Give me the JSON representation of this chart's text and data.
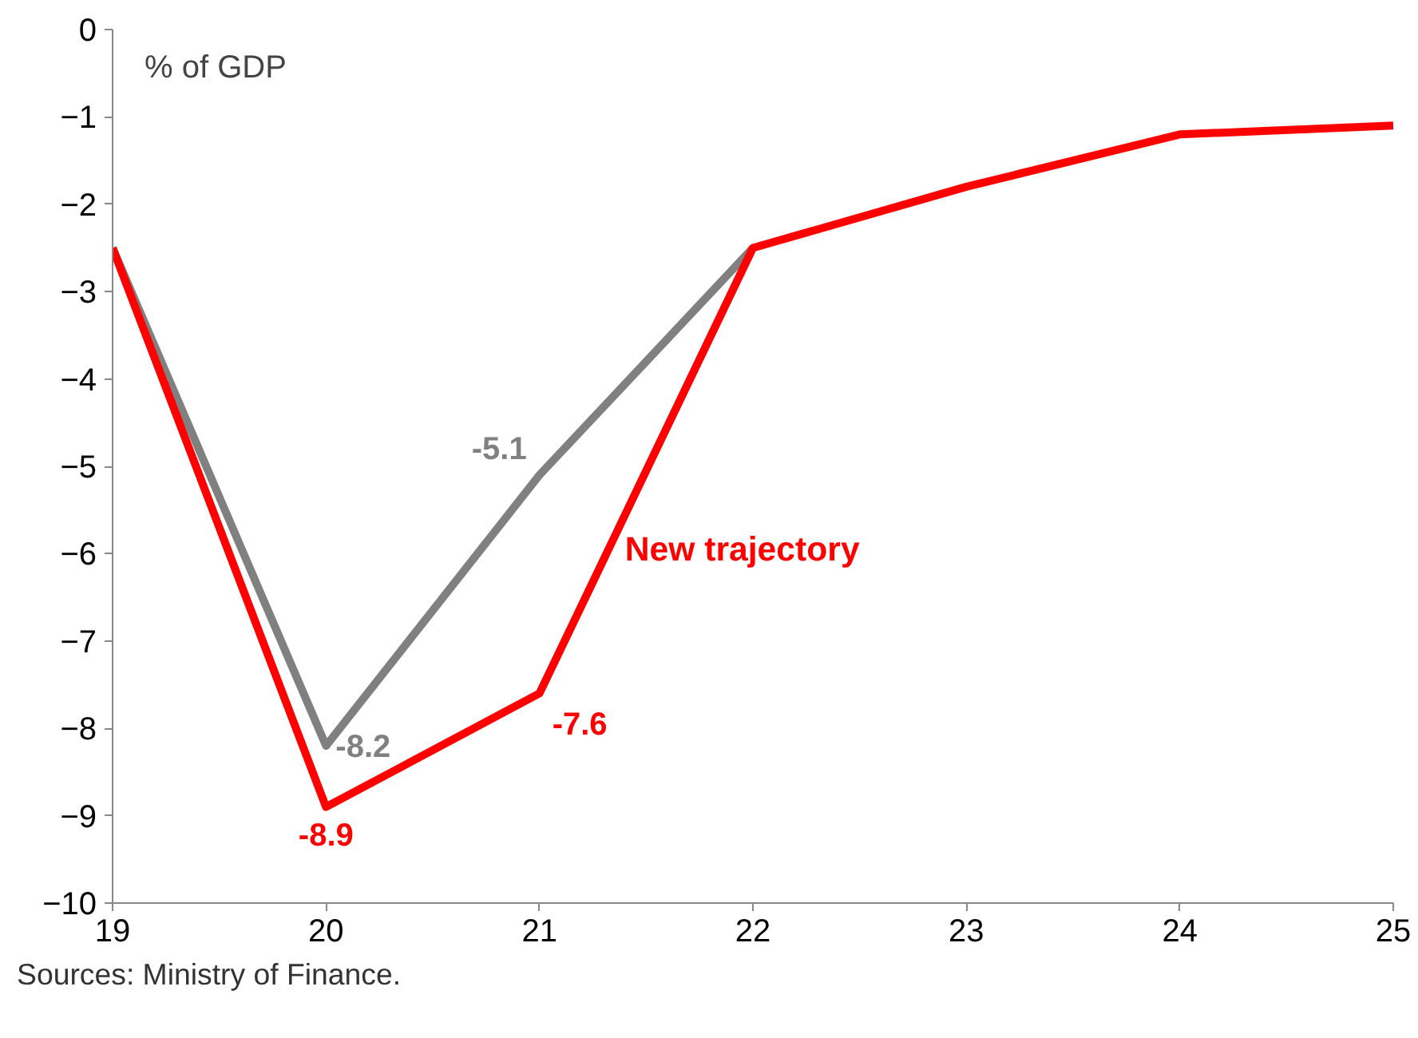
{
  "chart_data": {
    "type": "line",
    "ylabel": "% of GDP",
    "x": [
      19,
      20,
      21,
      22,
      23,
      24,
      25
    ],
    "xlim": [
      19,
      25
    ],
    "xticks": [
      19,
      20,
      21,
      22,
      23,
      24,
      25
    ],
    "ylim": [
      -10,
      0
    ],
    "yticks": [
      -10,
      -9,
      -8,
      -7,
      -6,
      -5,
      -4,
      -3,
      -2,
      -1,
      0
    ],
    "series": [
      {
        "color": "#808080",
        "values": [
          -2.5,
          -8.2,
          -5.1,
          -2.5,
          null,
          null,
          null
        ],
        "value_labels": [
          null,
          "-8.2",
          "-5.1",
          null,
          null,
          null,
          null
        ]
      },
      {
        "name": "New trajectory",
        "color": "#ff0000",
        "values": [
          -2.5,
          -8.9,
          -7.6,
          -2.5,
          -1.8,
          -1.2,
          -1.1
        ],
        "value_labels": [
          null,
          "-8.9",
          "-7.6",
          null,
          null,
          null,
          null
        ]
      }
    ],
    "grid": false,
    "marker": "none",
    "line_style": "solid",
    "annotations": [
      "Sources: Ministry of Finance."
    ]
  }
}
